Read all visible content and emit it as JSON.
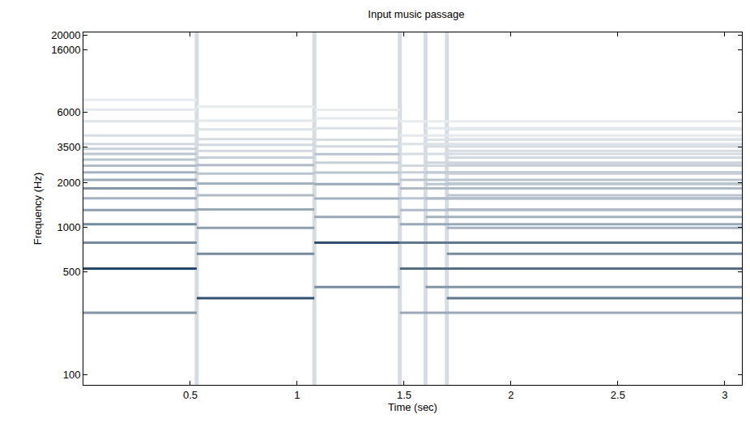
{
  "chart_data": {
    "type": "spectrogram",
    "title": "Input music passage",
    "x_label": "Time (sec)",
    "y_label": "Frequency (Hz)",
    "log": "y",
    "grid": false,
    "color": "#1c3d5e",
    "zlim": [
      0,
      1
    ],
    "xlim": [
      0,
      3.08
    ],
    "xticks": [
      0.5,
      1,
      1.5,
      2,
      2.5,
      3
    ],
    "ylim": [
      85,
      21000
    ],
    "yticks": [
      100,
      500,
      1000,
      2000,
      3500,
      6000,
      16000,
      20000
    ],
    "onsets": [
      0.53,
      1.08,
      1.48,
      1.6,
      1.7
    ],
    "notes": [
      {
        "start": 0,
        "end": 0.53,
        "freqs": [
          262,
          523,
          785,
          1047,
          1308,
          1570,
          1832,
          2093,
          2355,
          2616,
          2878,
          3140,
          3401,
          3663,
          4186,
          5232,
          6280,
          7325
        ],
        "levels": [
          0.55,
          0.95,
          0.6,
          0.6,
          0.5,
          0.4,
          0.55,
          0.45,
          0.4,
          0.35,
          0.3,
          0.3,
          0.25,
          0.2,
          0.18,
          0.14,
          0.12,
          0.1
        ]
      },
      {
        "start": 0.53,
        "end": 1.08,
        "freqs": [
          330,
          659,
          989,
          1319,
          1648,
          1978,
          2307,
          2637,
          2967,
          3296,
          3626,
          3956,
          4615,
          5274,
          6593
        ],
        "levels": [
          0.9,
          0.6,
          0.5,
          0.45,
          0.35,
          0.4,
          0.3,
          0.35,
          0.25,
          0.2,
          0.2,
          0.18,
          0.15,
          0.12,
          0.1
        ]
      },
      {
        "start": 1.08,
        "end": 1.48,
        "freqs": [
          392,
          784,
          1175,
          1567,
          1959,
          2351,
          2743,
          3135,
          3527,
          3918,
          4702,
          5486,
          6270
        ],
        "levels": [
          0.6,
          0.9,
          0.45,
          0.4,
          0.45,
          0.3,
          0.25,
          0.3,
          0.2,
          0.18,
          0.15,
          0.12,
          0.1
        ]
      },
      {
        "start": 1.48,
        "end": 3.08,
        "freqs": [
          262,
          523,
          785,
          1047,
          1308,
          1570,
          1832,
          2093,
          2355,
          2616,
          3140,
          3663,
          4186,
          5232
        ],
        "levels": [
          0.45,
          0.75,
          0.7,
          0.45,
          0.35,
          0.3,
          0.35,
          0.3,
          0.25,
          0.2,
          0.18,
          0.15,
          0.12,
          0.1
        ]
      },
      {
        "start": 1.6,
        "end": 3.08,
        "freqs": [
          392,
          1175,
          1567,
          1959,
          2351,
          2743,
          3527,
          3918,
          4702
        ],
        "levels": [
          0.55,
          0.4,
          0.35,
          0.3,
          0.28,
          0.22,
          0.18,
          0.15,
          0.12
        ]
      },
      {
        "start": 1.7,
        "end": 3.08,
        "freqs": [
          330,
          659,
          989,
          1319,
          1648,
          1978,
          2307,
          2637,
          2967,
          3296,
          3956,
          4615
        ],
        "levels": [
          0.7,
          0.6,
          0.4,
          0.35,
          0.3,
          0.3,
          0.25,
          0.25,
          0.2,
          0.18,
          0.15,
          0.12
        ]
      }
    ]
  }
}
